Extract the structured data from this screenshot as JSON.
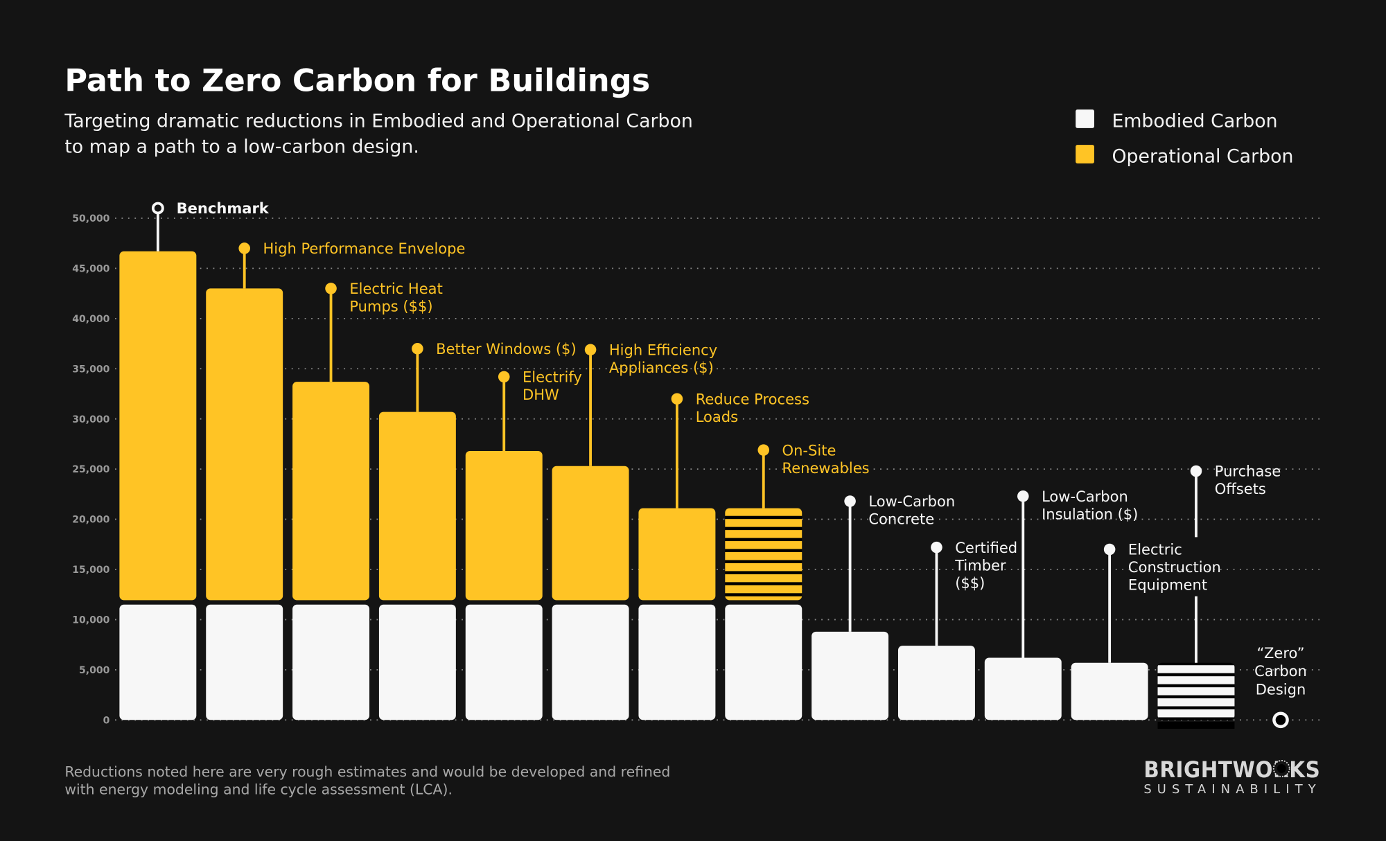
{
  "header": {
    "title": "Path to Zero Carbon for Buildings",
    "subtitle_lines": [
      "Targeting dramatic reductions in Embodied and Operational Carbon",
      "to map a path to a low-carbon design."
    ]
  },
  "legend": [
    {
      "label": "Embodied Carbon",
      "color": "#F7F7F7"
    },
    {
      "label": "Operational Carbon",
      "color": "#FFC425"
    }
  ],
  "footer": {
    "note_lines": [
      "Reductions noted here are very rough estimates and would be developed and refined",
      "with energy modeling and life cycle assessment (LCA)."
    ]
  },
  "logo": {
    "name": "BRIGHTWORKS",
    "tagline": "SUSTAINABILITY"
  },
  "colors": {
    "background": "#141414",
    "embodied": "#F7F7F7",
    "operational": "#FFC425",
    "axis_text": "#9A9A9A"
  },
  "chart_data": {
    "type": "bar",
    "stacked": true,
    "title": "Path to Zero Carbon for Buildings",
    "xlabel": "",
    "ylabel": "",
    "ylim": [
      0,
      50000
    ],
    "yticks": [
      "0",
      "5,000",
      "10,000",
      "15,000",
      "20,000",
      "25,000",
      "30,000",
      "35,000",
      "40,000",
      "45,000",
      "50,000"
    ],
    "grid": "horizontal dotted",
    "legend_position": "top-right",
    "series_names": [
      "Embodied Carbon",
      "Operational Carbon"
    ],
    "steps": [
      {
        "label": [
          "Benchmark"
        ],
        "label_color": "white",
        "embodied": 11500,
        "operational": 35200,
        "marker": 51000,
        "marker_style": "hollow",
        "striped": false
      },
      {
        "label": [
          "High Performance Envelope"
        ],
        "label_color": "yellow",
        "embodied": 11500,
        "operational": 31500,
        "marker": 47000,
        "striped": false
      },
      {
        "label": [
          "Electric Heat",
          "Pumps ($$)"
        ],
        "label_color": "yellow",
        "embodied": 11500,
        "operational": 22200,
        "marker": 43000,
        "striped": false
      },
      {
        "label": [
          "Better Windows ($)"
        ],
        "label_color": "yellow",
        "embodied": 11500,
        "operational": 19200,
        "marker": 37000,
        "striped": false
      },
      {
        "label": [
          "Electrify",
          "DHW"
        ],
        "label_color": "yellow",
        "embodied": 11500,
        "operational": 15300,
        "marker": 34200,
        "striped": false
      },
      {
        "label": [
          "High Efficiency",
          "Appliances ($)"
        ],
        "label_color": "yellow",
        "embodied": 11500,
        "operational": 13800,
        "marker": 36900,
        "striped": false
      },
      {
        "label": [
          "Reduce Process",
          "Loads"
        ],
        "label_color": "yellow",
        "embodied": 11500,
        "operational": 9600,
        "marker": 32000,
        "striped": false
      },
      {
        "label": [
          "On-Site",
          "Renewables"
        ],
        "label_color": "yellow",
        "embodied": 11500,
        "operational": 9600,
        "marker": 26900,
        "striped": true
      },
      {
        "label": [
          "Low-Carbon",
          "Concrete"
        ],
        "label_color": "white",
        "embodied": 8800,
        "operational": 0,
        "marker": 21800,
        "striped": false
      },
      {
        "label": [
          "Certified",
          "Timber",
          "($$)"
        ],
        "label_color": "white",
        "embodied": 7400,
        "operational": 0,
        "marker": 17200,
        "striped": false
      },
      {
        "label": [
          "Low-Carbon",
          "Insulation ($)"
        ],
        "label_color": "white",
        "embodied": 6200,
        "operational": 0,
        "marker": 22300,
        "striped": false
      },
      {
        "label": [
          "Electric",
          "Construction",
          "Equipment"
        ],
        "label_color": "white",
        "embodied": 5700,
        "operational": 0,
        "marker": 17000,
        "striped": false
      },
      {
        "label": [
          "Purchase",
          "Offsets"
        ],
        "label_color": "white",
        "embodied": 5700,
        "operational": 0,
        "marker": 24800,
        "striped": true
      }
    ],
    "end_point": {
      "label": [
        "“Zero”",
        "Carbon",
        "Design"
      ],
      "value": 0
    }
  }
}
